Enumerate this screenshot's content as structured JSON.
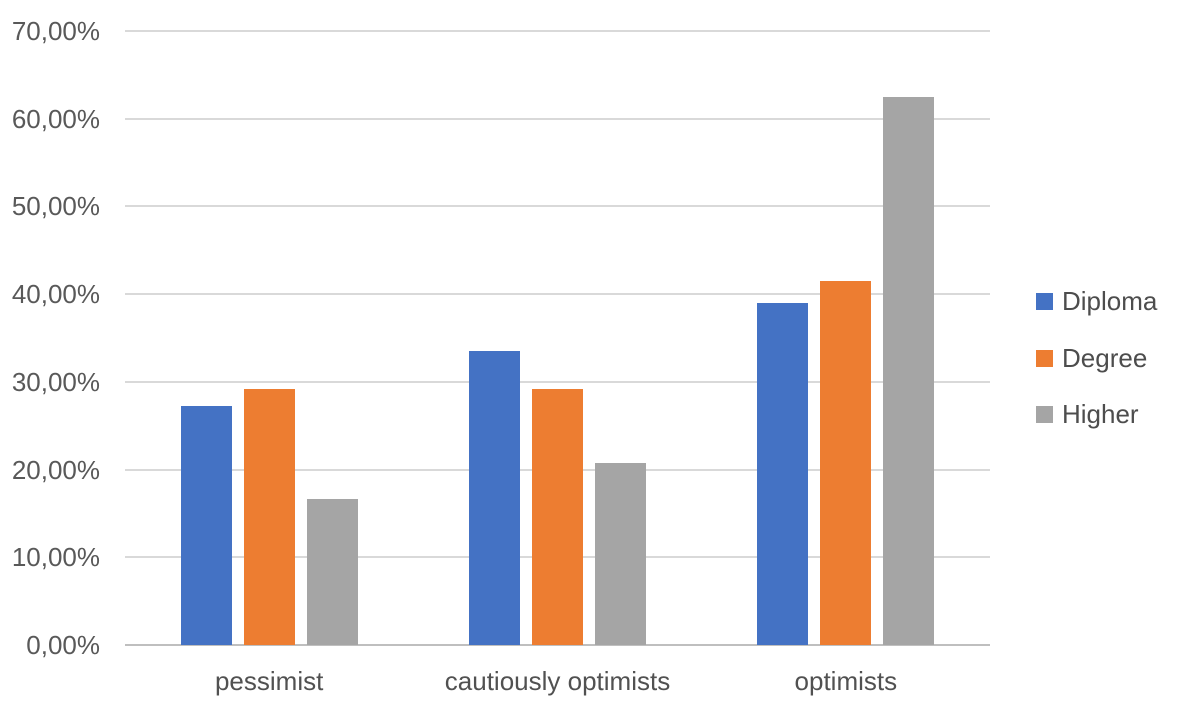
{
  "chart_data": {
    "type": "bar",
    "title": "",
    "xlabel": "",
    "ylabel": "",
    "categories": [
      "pessimist",
      "cautiously optimists",
      "optimists"
    ],
    "series": [
      {
        "name": "Diploma",
        "color": "#4472C4",
        "values": [
          27.3,
          33.5,
          39.0
        ]
      },
      {
        "name": "Degree",
        "color": "#ED7D31",
        "values": [
          29.2,
          29.2,
          41.5
        ]
      },
      {
        "name": "Higher",
        "color": "#A5A5A5",
        "values": [
          16.7,
          20.8,
          62.5
        ]
      }
    ],
    "y_ticks": [
      {
        "value": 0,
        "label": "0,00%"
      },
      {
        "value": 10,
        "label": "10,00%"
      },
      {
        "value": 20,
        "label": "20,00%"
      },
      {
        "value": 30,
        "label": "30,00%"
      },
      {
        "value": 40,
        "label": "40,00%"
      },
      {
        "value": 50,
        "label": "50,00%"
      },
      {
        "value": 60,
        "label": "60,00%"
      },
      {
        "value": 70,
        "label": "70,00%"
      }
    ],
    "ylim": [
      0,
      70
    ],
    "grid": true,
    "legend_position": "right",
    "colors": {
      "gridline": "#d9d9d9",
      "axis_line": "#bfbfbf",
      "tick_text": "#595959",
      "category_text": "#515151",
      "legend_text": "#4d4d4d",
      "background": "#ffffff"
    }
  }
}
